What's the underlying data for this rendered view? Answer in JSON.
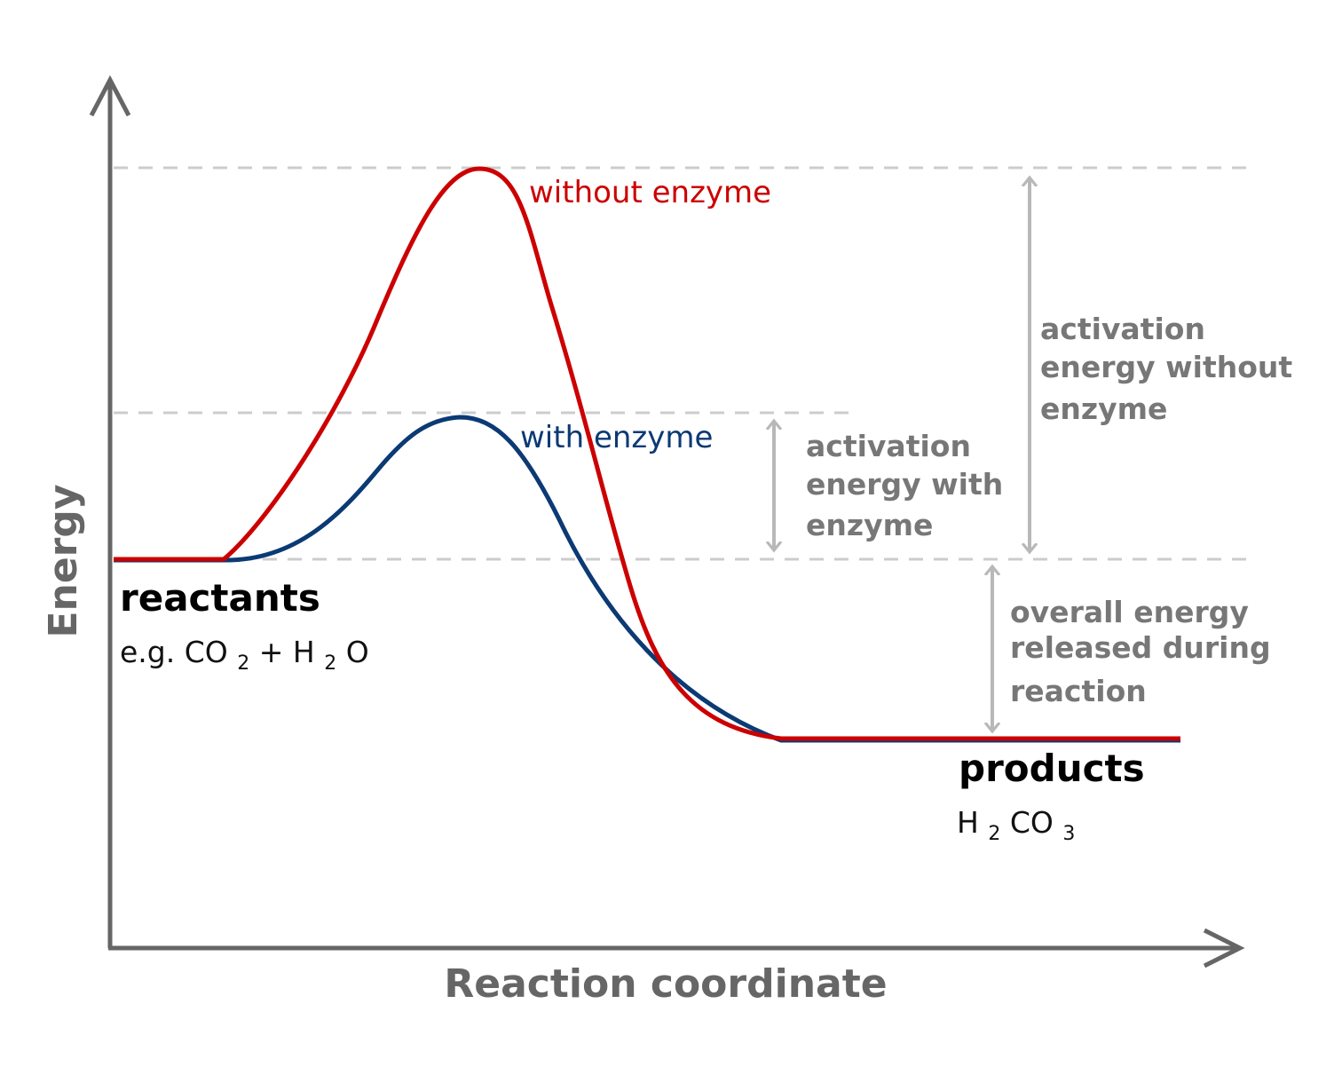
{
  "axes": {
    "y_label": "Energy",
    "x_label": "Reaction coordinate"
  },
  "curves": {
    "without_enzyme": {
      "label": "without enzyme",
      "color": "#cc0000"
    },
    "with_enzyme": {
      "label": "with enzyme",
      "color": "#0b3a74"
    }
  },
  "annotations": {
    "activation_without": [
      "activation",
      "energy without",
      "enzyme"
    ],
    "activation_with": [
      "activation",
      "energy with",
      "enzyme"
    ],
    "overall_released": [
      "overall energy",
      "released during",
      "reaction"
    ]
  },
  "reactants": {
    "title": "reactants",
    "formula_prefix": "e.g. CO",
    "formula_sub1": "2",
    "formula_plus": " + H",
    "formula_sub2": "2",
    "formula_end": "O"
  },
  "products": {
    "title": "products",
    "formula_h": "H",
    "formula_sub1": "2",
    "formula_co": "CO",
    "formula_sub2": "3"
  },
  "colors": {
    "axis": "#666666",
    "guide": "#cccccc",
    "arrow": "#b8b8b8"
  }
}
